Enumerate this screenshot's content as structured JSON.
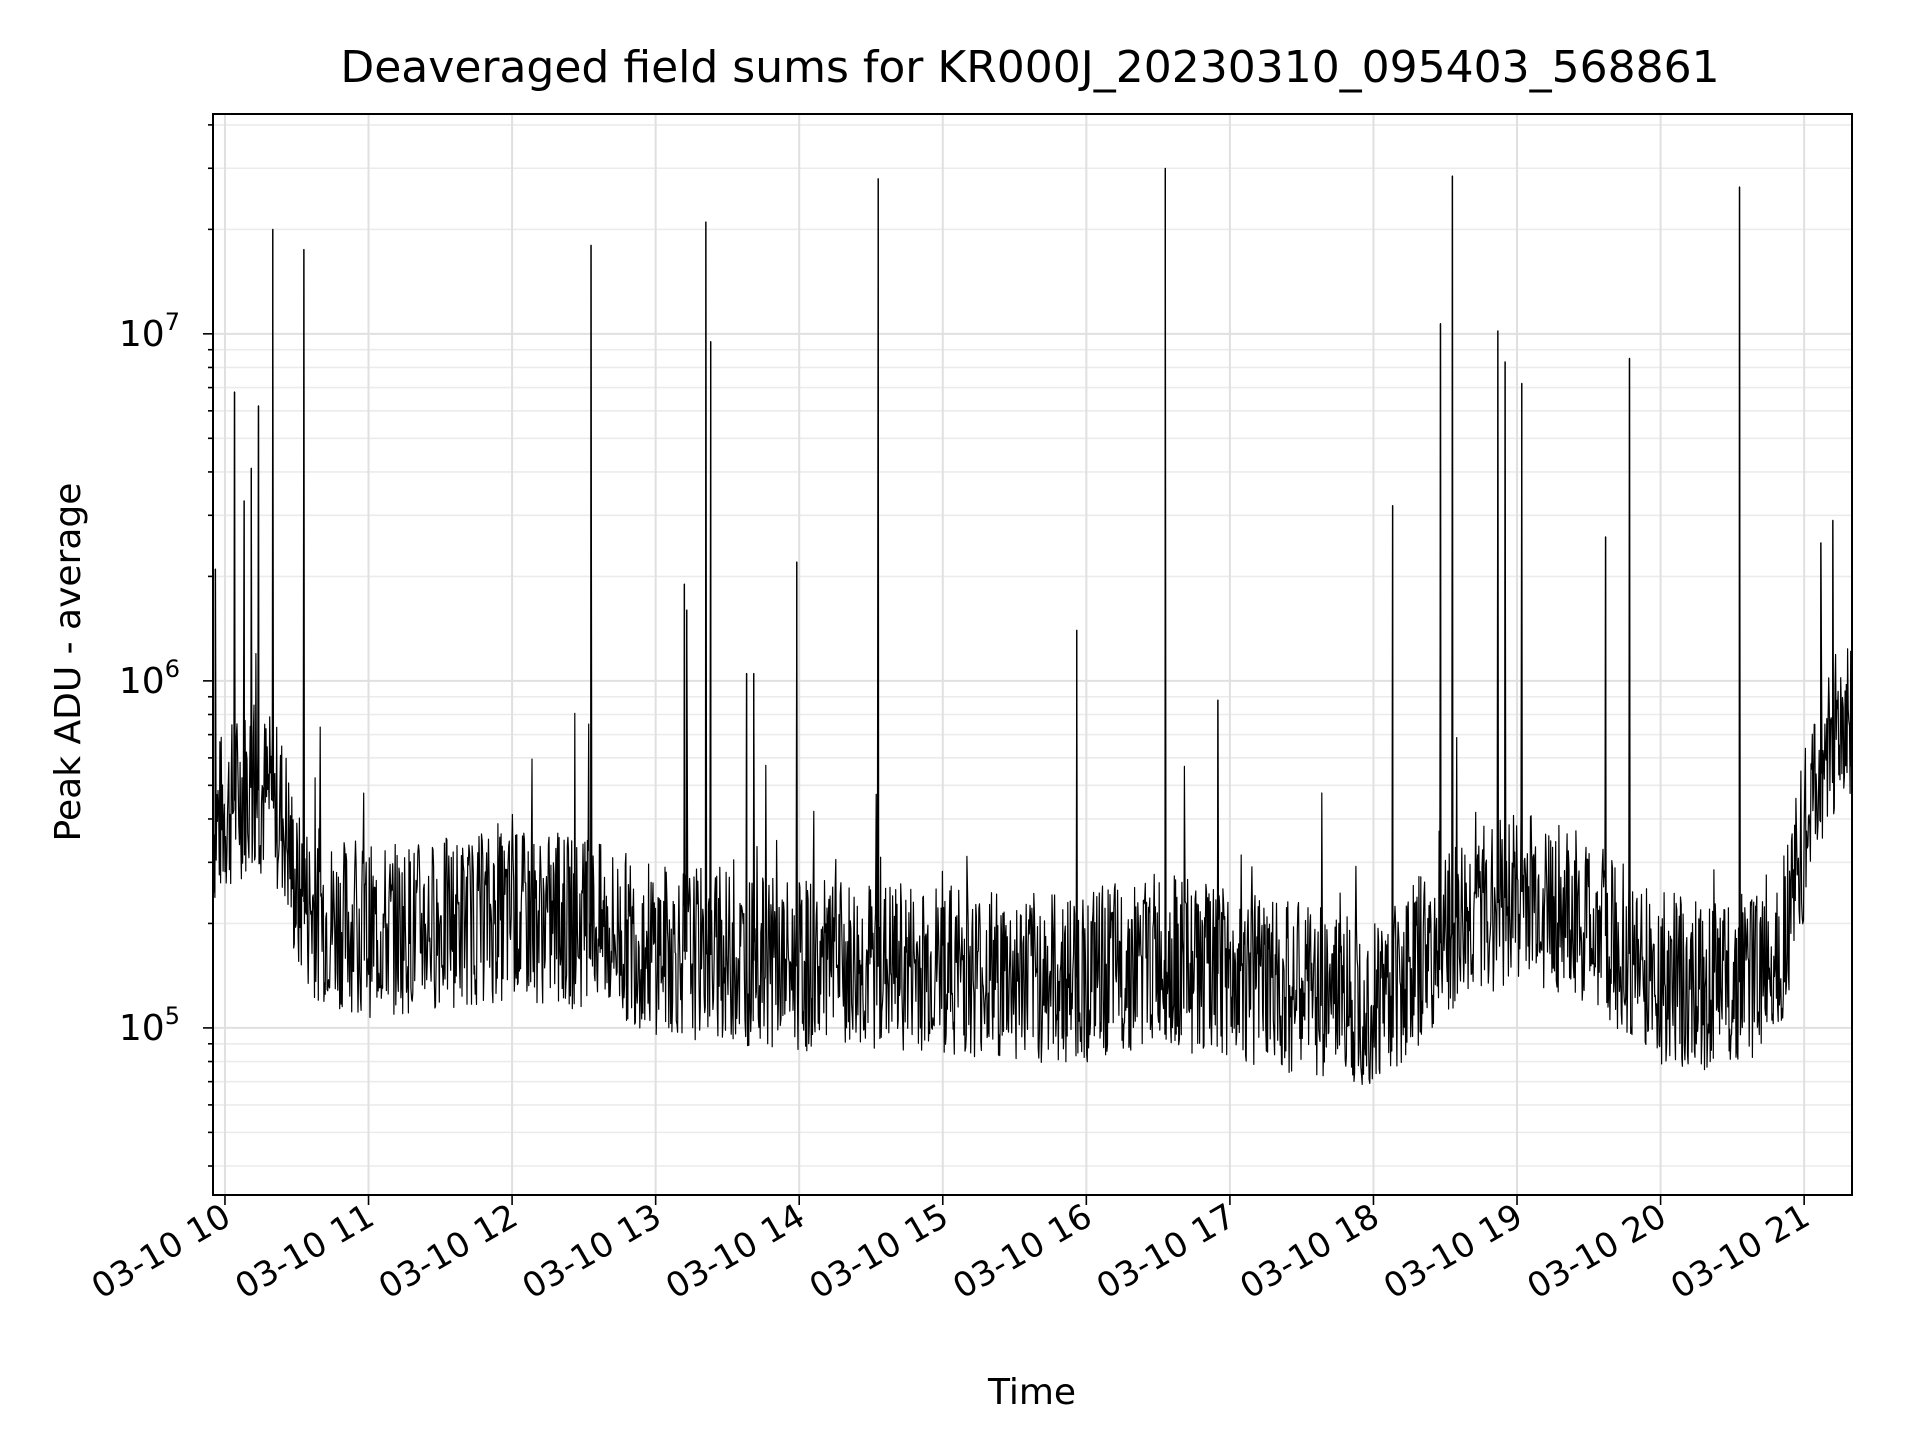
{
  "chart_data": {
    "type": "line",
    "title": "Deaveraged field sums for KR000J_20230310_095403_568861",
    "xlabel": "Time",
    "ylabel": "Peak ADU - average",
    "xlim": [
      "2023-03-10 09:55",
      "2023-03-10 21:20"
    ],
    "ylim": [
      33000,
      43000000
    ],
    "yscale": "log",
    "grid": true,
    "xtick_labels": [
      "03-10 10",
      "03-10 11",
      "03-10 12",
      "03-10 13",
      "03-10 14",
      "03-10 15",
      "03-10 16",
      "03-10 17",
      "03-10 18",
      "03-10 19",
      "03-10 20",
      "03-10 21"
    ],
    "ytick_labels": [
      {
        "base": "10",
        "exp": "5",
        "value": 100000
      },
      {
        "base": "10",
        "exp": "6",
        "value": 1000000
      },
      {
        "base": "10",
        "exp": "7",
        "value": 10000000
      }
    ],
    "series": [
      {
        "color": "#000000",
        "x": [
          "2023-03-10 09:55",
          "2023-03-10 10:00",
          "2023-03-10 10:05",
          "2023-03-10 10:10",
          "2023-03-10 10:15",
          "2023-03-10 10:20",
          "2023-03-10 10:25",
          "2023-03-10 10:30",
          "2023-03-10 10:40",
          "2023-03-10 11:00",
          "2023-03-10 11:30",
          "2023-03-10 12:00",
          "2023-03-10 12:30",
          "2023-03-10 13:00",
          "2023-03-10 13:30",
          "2023-03-10 14:00",
          "2023-03-10 14:30",
          "2023-03-10 15:00",
          "2023-03-10 15:30",
          "2023-03-10 16:00",
          "2023-03-10 16:30",
          "2023-03-10 17:00",
          "2023-03-10 17:30",
          "2023-03-10 18:00",
          "2023-03-10 18:30",
          "2023-03-10 19:00",
          "2023-03-10 19:30",
          "2023-03-10 20:00",
          "2023-03-10 20:30",
          "2023-03-10 20:50",
          "2023-03-10 21:00",
          "2023-03-10 21:10",
          "2023-03-10 21:20"
        ],
        "y": [
          380000,
          420000,
          460000,
          500000,
          480000,
          450000,
          400000,
          240000,
          210000,
          190000,
          200000,
          210000,
          200000,
          170000,
          160000,
          150000,
          150000,
          150000,
          140000,
          140000,
          160000,
          140000,
          130000,
          120000,
          180000,
          250000,
          200000,
          140000,
          130000,
          170000,
          350000,
          650000,
          750000
        ],
        "spikes": [
          {
            "x": "2023-03-10 09:56",
            "y": 2100000
          },
          {
            "x": "2023-03-10 10:04",
            "y": 6800000
          },
          {
            "x": "2023-03-10 10:08",
            "y": 3300000
          },
          {
            "x": "2023-03-10 10:11",
            "y": 4100000
          },
          {
            "x": "2023-03-10 10:14",
            "y": 6200000
          },
          {
            "x": "2023-03-10 10:20",
            "y": 20000000
          },
          {
            "x": "2023-03-10 10:33",
            "y": 17500000
          },
          {
            "x": "2023-03-10 12:33",
            "y": 18000000
          },
          {
            "x": "2023-03-10 13:12",
            "y": 1900000
          },
          {
            "x": "2023-03-10 13:13",
            "y": 1600000
          },
          {
            "x": "2023-03-10 13:21",
            "y": 21000000
          },
          {
            "x": "2023-03-10 13:23",
            "y": 9500000
          },
          {
            "x": "2023-03-10 13:38",
            "y": 1050000
          },
          {
            "x": "2023-03-10 13:41",
            "y": 1050000
          },
          {
            "x": "2023-03-10 13:59",
            "y": 2200000
          },
          {
            "x": "2023-03-10 14:33",
            "y": 28000000
          },
          {
            "x": "2023-03-10 15:56",
            "y": 1400000
          },
          {
            "x": "2023-03-10 16:33",
            "y": 30000000
          },
          {
            "x": "2023-03-10 16:55",
            "y": 880000
          },
          {
            "x": "2023-03-10 18:08",
            "y": 3200000
          },
          {
            "x": "2023-03-10 18:28",
            "y": 10700000
          },
          {
            "x": "2023-03-10 18:33",
            "y": 28500000
          },
          {
            "x": "2023-03-10 18:52",
            "y": 10200000
          },
          {
            "x": "2023-03-10 18:55",
            "y": 8300000
          },
          {
            "x": "2023-03-10 19:02",
            "y": 7200000
          },
          {
            "x": "2023-03-10 19:37",
            "y": 2600000
          },
          {
            "x": "2023-03-10 19:47",
            "y": 8500000
          },
          {
            "x": "2023-03-10 20:33",
            "y": 26500000
          },
          {
            "x": "2023-03-10 21:07",
            "y": 2500000
          },
          {
            "x": "2023-03-10 21:12",
            "y": 2900000
          }
        ]
      }
    ]
  }
}
